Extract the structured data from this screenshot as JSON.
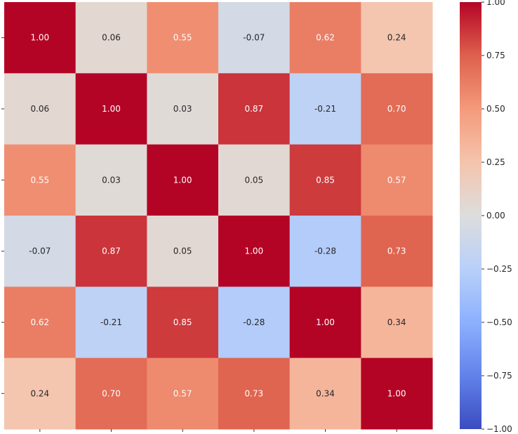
{
  "chart_data": {
    "type": "heatmap",
    "title": "",
    "xlabel": "",
    "ylabel": "",
    "row_labels": [
      "",
      "",
      "",
      "",
      "",
      ""
    ],
    "col_labels": [
      "",
      "",
      "",
      "",
      "",
      ""
    ],
    "values": [
      [
        1.0,
        0.06,
        0.55,
        -0.07,
        0.62,
        0.24
      ],
      [
        0.06,
        1.0,
        0.03,
        0.87,
        -0.21,
        0.7
      ],
      [
        0.55,
        0.03,
        1.0,
        0.05,
        0.85,
        0.57
      ],
      [
        -0.07,
        0.87,
        0.05,
        1.0,
        -0.28,
        0.73
      ],
      [
        0.62,
        -0.21,
        0.85,
        -0.28,
        1.0,
        0.34
      ],
      [
        0.24,
        0.7,
        0.57,
        0.73,
        0.34,
        1.0
      ]
    ],
    "annotations": [
      [
        "1.00",
        "0.06",
        "0.55",
        "-0.07",
        "0.62",
        "0.24"
      ],
      [
        "0.06",
        "1.00",
        "0.03",
        "0.87",
        "-0.21",
        "0.70"
      ],
      [
        "0.55",
        "0.03",
        "1.00",
        "0.05",
        "0.85",
        "0.57"
      ],
      [
        "-0.07",
        "0.87",
        "0.05",
        "1.00",
        "-0.28",
        "0.73"
      ],
      [
        "0.62",
        "-0.21",
        "0.85",
        "-0.28",
        "1.00",
        "0.34"
      ],
      [
        "0.24",
        "0.70",
        "0.57",
        "0.73",
        "0.34",
        "1.00"
      ]
    ],
    "colormap": "coolwarm",
    "vmin": -1,
    "vmax": 1,
    "colorbar": {
      "ticks": [
        1.0,
        0.75,
        0.5,
        0.25,
        0.0,
        -0.25,
        -0.5,
        -0.75,
        -1.0
      ],
      "tick_labels": [
        "1.00",
        "0.75",
        "0.50",
        "0.25",
        "0.00",
        "−0.25",
        "−0.50",
        "−0.75",
        "−1.00"
      ]
    }
  }
}
